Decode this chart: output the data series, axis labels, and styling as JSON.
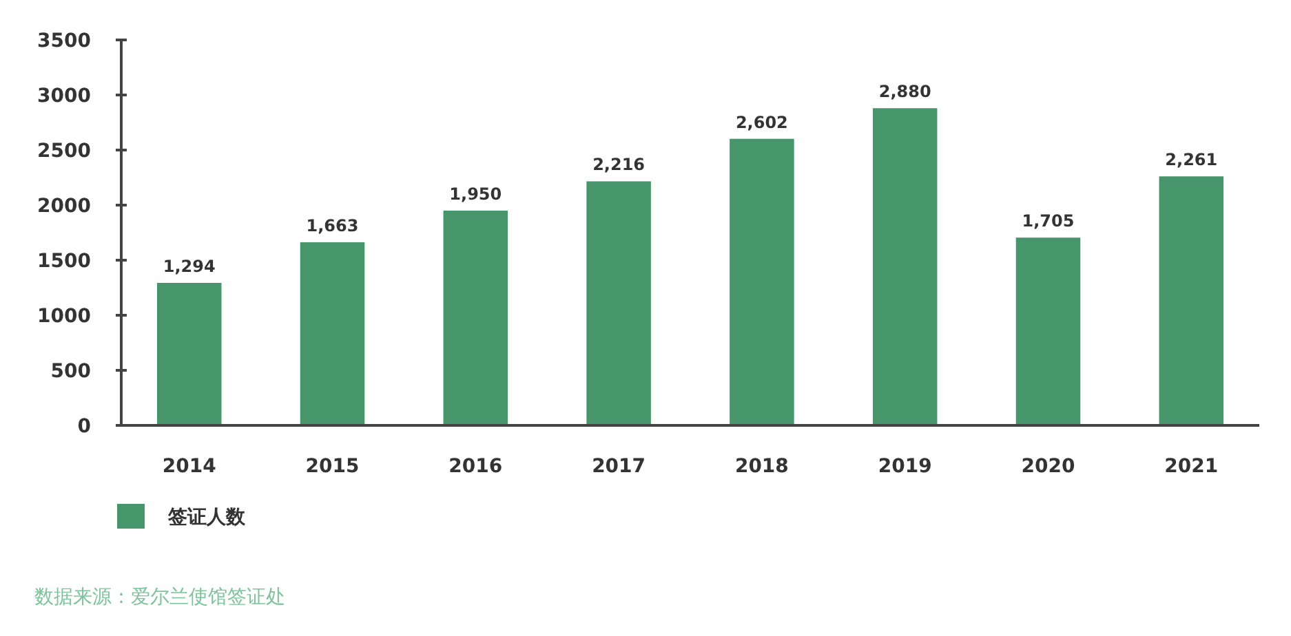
{
  "chart_data": {
    "type": "bar",
    "categories": [
      "2014",
      "2015",
      "2016",
      "2017",
      "2018",
      "2019",
      "2020",
      "2021"
    ],
    "series": [
      {
        "name": "签证人数",
        "color": "#46956b",
        "values": [
          1294,
          1663,
          1950,
          2216,
          2602,
          2880,
          1705,
          2261
        ],
        "value_labels": [
          "1,294",
          "1,663",
          "1,950",
          "2,216",
          "2,602",
          "2,880",
          "1,705",
          "2,261"
        ]
      }
    ],
    "ylim": [
      0,
      3500
    ],
    "yticks": [
      0,
      500,
      1000,
      1500,
      2000,
      2500,
      3000,
      3500
    ],
    "grid": false,
    "legend": "bottom left",
    "annotations": [
      "数据来源：爱尔兰使馆签证处"
    ]
  }
}
